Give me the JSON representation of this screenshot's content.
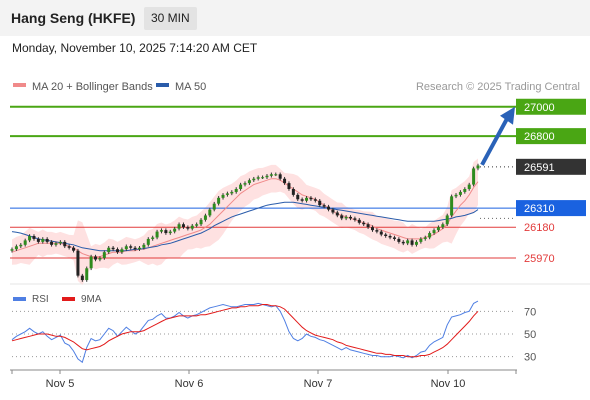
{
  "header": {
    "title": "Hang Seng (HKFE)",
    "timeframe": "30 MIN",
    "timestamp": "Monday, November 10, 2025 7:14:20 AM CET"
  },
  "colors": {
    "resistance": "#4aa614",
    "current": "#333333",
    "pivot": "#1a62e0",
    "support": "#e23b3b",
    "ma20": "#f08a8a",
    "bollinger_fill": "#fdd7d7",
    "ma50": "#2a5caa",
    "candle_up": "#2e8b1e",
    "candle_down": "#222222",
    "rsi": "#4f7fe3",
    "rsi_ma": "#e21b1b",
    "arrow": "#2a62b8"
  },
  "chart_data": [
    {
      "type": "candlestick",
      "legend": [
        "MA 20 + Bollinger Bands",
        "MA 50"
      ],
      "legend_position": "top-left",
      "watermark": "Research © 2025 Trading Central",
      "x_ticks": [
        "Nov 5",
        "Nov 6",
        "Nov 7",
        "Nov 10"
      ],
      "ylim": [
        25800,
        27080
      ],
      "grid": false,
      "levels": [
        {
          "label": "27000",
          "value": 27000,
          "kind": "resistance"
        },
        {
          "label": "26800",
          "value": 26800,
          "kind": "resistance"
        },
        {
          "label": "26591",
          "value": 26591,
          "kind": "current"
        },
        {
          "label": "26310",
          "value": 26310,
          "kind": "pivot"
        },
        {
          "label": "26180",
          "value": 26180,
          "kind": "support"
        },
        {
          "label": "25970",
          "value": 25970,
          "kind": "support"
        }
      ],
      "arrow": {
        "from": 26591,
        "to": 27000,
        "direction": "up"
      },
      "close_series": [
        26030,
        26050,
        26060,
        26090,
        26120,
        26100,
        26080,
        26100,
        26080,
        26060,
        26070,
        26080,
        26050,
        26040,
        26020,
        25850,
        25820,
        25900,
        25980,
        25960,
        25970,
        26010,
        26040,
        26030,
        26010,
        26030,
        26050,
        26040,
        26030,
        26040,
        26060,
        26100,
        26110,
        26150,
        26160,
        26140,
        26150,
        26170,
        26200,
        26180,
        26170,
        26190,
        26200,
        26230,
        26260,
        26300,
        26340,
        26380,
        26400,
        26410,
        26420,
        26440,
        26470,
        26480,
        26500,
        26510,
        26520,
        26520,
        26530,
        26540,
        26540,
        26510,
        26480,
        26440,
        26400,
        26370,
        26360,
        26380,
        26370,
        26360,
        26330,
        26320,
        26300,
        26280,
        26260,
        26240,
        26250,
        26240,
        26230,
        26210,
        26200,
        26180,
        26160,
        26150,
        26130,
        26120,
        26110,
        26100,
        26080,
        26070,
        26090,
        26060,
        26080,
        26100,
        26110,
        26140,
        26160,
        26180,
        26200,
        26260,
        26390,
        26400,
        26420,
        26440,
        26470,
        26580,
        26600
      ],
      "ma20": [
        26010,
        26020,
        26030,
        26040,
        26050,
        26060,
        26070,
        26070,
        26070,
        26070,
        26070,
        26070,
        26060,
        26050,
        26040,
        26020,
        26000,
        25990,
        25980,
        25980,
        25980,
        25990,
        26000,
        26010,
        26010,
        26010,
        26020,
        26020,
        26020,
        26030,
        26030,
        26040,
        26050,
        26060,
        26070,
        26080,
        26090,
        26100,
        26110,
        26120,
        26130,
        26140,
        26150,
        26160,
        26180,
        26200,
        26230,
        26260,
        26290,
        26320,
        26350,
        26380,
        26410,
        26430,
        26450,
        26470,
        26480,
        26490,
        26500,
        26510,
        26510,
        26500,
        26480,
        26460,
        26440,
        26420,
        26400,
        26390,
        26380,
        26370,
        26350,
        26330,
        26310,
        26290,
        26270,
        26260,
        26250,
        26240,
        26230,
        26220,
        26210,
        26200,
        26190,
        26170,
        26160,
        26150,
        26140,
        26130,
        26120,
        26110,
        26100,
        26100,
        26100,
        26100,
        26110,
        26120,
        26130,
        26150,
        26170,
        26200,
        26250,
        26290,
        26330,
        26360,
        26400,
        26450,
        26490
      ],
      "ma50": [
        26150,
        26145,
        26140,
        26130,
        26120,
        26110,
        26100,
        26095,
        26090,
        26085,
        26080,
        26075,
        26070,
        26065,
        26060,
        26050,
        26040,
        26035,
        26030,
        26025,
        26020,
        26020,
        26020,
        26020,
        26020,
        26020,
        26020,
        26025,
        26030,
        26030,
        26035,
        26040,
        26045,
        26050,
        26060,
        26065,
        26070,
        26080,
        26090,
        26100,
        26110,
        26120,
        26130,
        26140,
        26155,
        26170,
        26190,
        26205,
        26220,
        26235,
        26250,
        26260,
        26270,
        26280,
        26290,
        26300,
        26310,
        26320,
        26330,
        26335,
        26340,
        26345,
        26350,
        26350,
        26350,
        26345,
        26340,
        26335,
        26330,
        26325,
        26320,
        26315,
        26310,
        26305,
        26300,
        26295,
        26290,
        26285,
        26280,
        26275,
        26270,
        26265,
        26260,
        26255,
        26250,
        26245,
        26240,
        26235,
        26230,
        26225,
        26220,
        26220,
        26220,
        26220,
        26220,
        26220,
        26220,
        26225,
        26230,
        26235,
        26240,
        26250,
        26255,
        26260,
        26270,
        26280,
        26300
      ]
    },
    {
      "type": "line",
      "legend": [
        "RSI",
        "9MA"
      ],
      "legend_position": "top-left",
      "ylim": [
        20,
        80
      ],
      "y_ticks": [
        "70",
        "50",
        "30"
      ],
      "grid": false,
      "rsi": [
        45,
        48,
        50,
        52,
        55,
        52,
        50,
        52,
        48,
        45,
        47,
        49,
        42,
        40,
        35,
        28,
        25,
        38,
        46,
        44,
        45,
        50,
        55,
        53,
        48,
        52,
        56,
        53,
        50,
        52,
        57,
        62,
        63,
        66,
        68,
        64,
        64,
        66,
        69,
        66,
        64,
        66,
        67,
        69,
        71,
        73,
        74,
        75,
        76,
        75,
        74,
        74,
        75,
        76,
        76,
        76,
        77,
        76,
        75,
        74,
        75,
        70,
        62,
        52,
        46,
        44,
        46,
        50,
        48,
        47,
        45,
        44,
        42,
        40,
        38,
        36,
        38,
        36,
        35,
        34,
        33,
        32,
        31,
        31,
        30,
        30,
        30,
        31,
        30,
        29,
        31,
        29,
        31,
        34,
        35,
        40,
        43,
        45,
        47,
        58,
        65,
        66,
        67,
        69,
        70,
        77,
        79
      ],
      "rsi_ma": [
        44,
        45,
        46,
        47,
        48,
        49,
        50,
        50,
        50,
        49,
        48,
        48,
        47,
        45,
        43,
        40,
        37,
        36,
        37,
        38,
        39,
        41,
        44,
        46,
        48,
        50,
        51,
        52,
        52,
        52,
        53,
        55,
        57,
        59,
        61,
        63,
        64,
        65,
        66,
        66,
        66,
        66,
        66,
        67,
        67,
        68,
        69,
        70,
        71,
        72,
        73,
        73,
        74,
        74,
        75,
        75,
        75,
        76,
        76,
        75,
        75,
        74,
        72,
        68,
        64,
        60,
        56,
        53,
        51,
        49,
        48,
        47,
        46,
        45,
        43,
        42,
        40,
        39,
        38,
        37,
        36,
        35,
        34,
        33,
        33,
        32,
        32,
        31,
        31,
        31,
        30,
        30,
        30,
        31,
        31,
        32,
        34,
        36,
        38,
        41,
        45,
        49,
        53,
        57,
        61,
        66,
        70
      ]
    }
  ]
}
